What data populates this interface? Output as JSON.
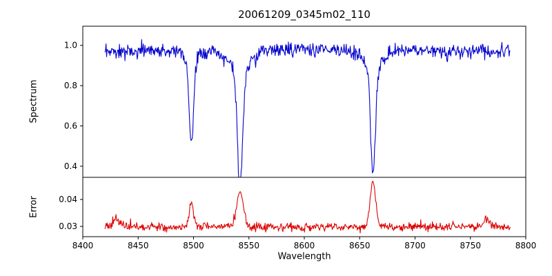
{
  "chart_data": {
    "type": "line",
    "title": "20061209_0345m02_110",
    "xlabel": "Wavelength",
    "xlim": [
      8400,
      8800
    ],
    "xticks": [
      8400,
      8450,
      8500,
      8550,
      8600,
      8650,
      8700,
      8750,
      8800
    ],
    "grid": false,
    "legend": "none",
    "seed": 20061209,
    "panels": [
      {
        "name": "spectrum",
        "ylabel": "Spectrum",
        "ylim": [
          0.345,
          1.095
        ],
        "yticks": [
          0.4,
          0.6,
          0.8,
          1.0
        ],
        "tick_decimals": 1,
        "color": "#0000cd",
        "description": "Normalized stellar spectrum, continuum near 1.0 with noise, three deep Ca II triplet absorption lines",
        "model": {
          "x_start": 8420,
          "x_end": 8786,
          "n_points": 730,
          "continuum": 0.975,
          "noise_sigma": 0.017,
          "dip_probability": 0.05,
          "dip_amplitude": 0.05,
          "absorption_lines": [
            {
              "center": 8498,
              "depth": 0.4,
              "core_width": 2.0,
              "wing_depth": 0.06,
              "wing_width": 6,
              "minimum_flux": 0.575
            },
            {
              "center": 8542,
              "depth": 0.575,
              "core_width": 2.4,
              "wing_depth": 0.1,
              "wing_width": 9,
              "minimum_flux": 0.4
            },
            {
              "center": 8662,
              "depth": 0.53,
              "core_width": 2.2,
              "wing_depth": 0.08,
              "wing_width": 8,
              "minimum_flux": 0.445
            }
          ]
        }
      },
      {
        "name": "error",
        "ylabel": "Error",
        "ylim": [
          0.0262,
          0.0482
        ],
        "yticks": [
          0.03,
          0.04
        ],
        "tick_decimals": 2,
        "color": "#dd0000",
        "description": "Error spectrum, flat baseline near 0.03 with peaks at the absorption-line wavelengths",
        "model": {
          "x_start": 8420,
          "x_end": 8786,
          "n_points": 730,
          "baseline": 0.0298,
          "noise_sigma": 0.00075,
          "spike_probability": 0.04,
          "spike_amplitude": 0.0015,
          "emission_peaks": [
            {
              "center": 8430,
              "height": 0.003,
              "width": 2.5,
              "peak_value": 0.033
            },
            {
              "center": 8498,
              "height": 0.009,
              "width": 2.0,
              "peak_value": 0.039
            },
            {
              "center": 8542,
              "height": 0.013,
              "width": 3.0,
              "peak_value": 0.043
            },
            {
              "center": 8662,
              "height": 0.017,
              "width": 2.5,
              "peak_value": 0.047
            },
            {
              "center": 8765,
              "height": 0.0028,
              "width": 3.0,
              "peak_value": 0.0325
            }
          ]
        }
      }
    ]
  }
}
